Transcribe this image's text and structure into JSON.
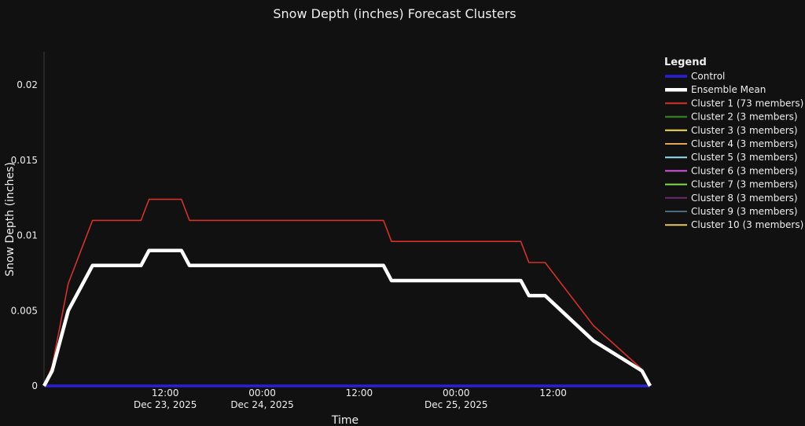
{
  "chart_data": {
    "type": "line",
    "title": "Snow Depth (inches) Forecast Clusters",
    "xlabel": "Time",
    "ylabel": "Snow Depth (inches)",
    "ylim": [
      0,
      0.0222
    ],
    "y_ticks": [
      {
        "value": 0,
        "label": "0"
      },
      {
        "value": 0.005,
        "label": "0.005"
      },
      {
        "value": 0.01,
        "label": "0.01"
      },
      {
        "value": 0.015,
        "label": "0.015"
      },
      {
        "value": 0.02,
        "label": "0.02"
      }
    ],
    "x_range": [
      "2025-12-22T21:00",
      "2025-12-26T00:00"
    ],
    "x_ticks": [
      {
        "x": "2025-12-23T12:00",
        "line1": "12:00",
        "line2": "Dec 23, 2025"
      },
      {
        "x": "2025-12-24T00:00",
        "line1": "00:00",
        "line2": "Dec 24, 2025"
      },
      {
        "x": "2025-12-24T12:00",
        "line1": "12:00",
        "line2": ""
      },
      {
        "x": "2025-12-25T00:00",
        "line1": "00:00",
        "line2": "Dec 25, 2025"
      },
      {
        "x": "2025-12-25T12:00",
        "line1": "12:00",
        "line2": ""
      }
    ],
    "grid": false,
    "legend": {
      "title": "Legend",
      "placement": "right"
    },
    "x": [
      "2025-12-22T21:00",
      "2025-12-22T22:00",
      "2025-12-23T00:00",
      "2025-12-23T03:00",
      "2025-12-23T04:00",
      "2025-12-23T09:00",
      "2025-12-23T10:00",
      "2025-12-23T14:00",
      "2025-12-23T15:00",
      "2025-12-24T15:00",
      "2025-12-24T16:00",
      "2025-12-25T08:00",
      "2025-12-25T09:00",
      "2025-12-25T11:00",
      "2025-12-25T17:00",
      "2025-12-25T23:00",
      "2025-12-26T00:00"
    ],
    "series": [
      {
        "name": "Control",
        "color": "#2a1fd8",
        "width": 3.5,
        "values": [
          0,
          0,
          0,
          0,
          0,
          0,
          0,
          0,
          0,
          0,
          0,
          0,
          0,
          0,
          0,
          0,
          0
        ]
      },
      {
        "name": "Ensemble Mean",
        "color": "#ffffff",
        "width": 4.5,
        "values": [
          0,
          0.001,
          0.005,
          0.008,
          0.008,
          0.008,
          0.009,
          0.009,
          0.008,
          0.008,
          0.007,
          0.007,
          0.006,
          0.006,
          0.003,
          0.001,
          0
        ]
      },
      {
        "name": "Cluster 1 (73 members)",
        "color": "#d6312a",
        "width": 1.6,
        "values": [
          0,
          0.0013,
          0.0068,
          0.011,
          0.011,
          0.011,
          0.0124,
          0.0124,
          0.011,
          0.011,
          0.0096,
          0.0096,
          0.0082,
          0.0082,
          0.004,
          0.0011,
          0
        ]
      },
      {
        "name": "Cluster 2 (3 members)",
        "color": "#3a8a2a",
        "width": 1.6,
        "values": [
          0,
          0,
          0,
          0,
          0,
          0,
          0,
          0,
          0,
          0,
          0,
          0,
          0,
          0,
          0,
          0,
          0
        ]
      },
      {
        "name": "Cluster 3 (3 members)",
        "color": "#f4e04d",
        "width": 1.6,
        "values": [
          0,
          0,
          0,
          0,
          0,
          0,
          0,
          0,
          0,
          0,
          0,
          0,
          0,
          0,
          0,
          0,
          0
        ]
      },
      {
        "name": "Cluster 4 (3 members)",
        "color": "#e8a250",
        "width": 1.6,
        "values": [
          0,
          0,
          0,
          0,
          0,
          0,
          0,
          0,
          0,
          0,
          0,
          0,
          0,
          0,
          0,
          0,
          0
        ]
      },
      {
        "name": "Cluster 5 (3 members)",
        "color": "#8fe0f2",
        "width": 1.6,
        "values": [
          0,
          0,
          0,
          0,
          0,
          0,
          0,
          0,
          0,
          0,
          0,
          0,
          0,
          0,
          0,
          0,
          0
        ]
      },
      {
        "name": "Cluster 6 (3 members)",
        "color": "#d855e0",
        "width": 1.6,
        "values": [
          0,
          0,
          0,
          0,
          0,
          0,
          0,
          0,
          0,
          0,
          0,
          0,
          0,
          0,
          0,
          0,
          0
        ]
      },
      {
        "name": "Cluster 7 (3 members)",
        "color": "#7fe040",
        "width": 1.6,
        "values": [
          0,
          0,
          0,
          0,
          0,
          0,
          0,
          0,
          0,
          0,
          0,
          0,
          0,
          0,
          0,
          0,
          0
        ]
      },
      {
        "name": "Cluster 8 (3 members)",
        "color": "#6a2a6e",
        "width": 1.6,
        "values": [
          0,
          0,
          0,
          0,
          0,
          0,
          0,
          0,
          0,
          0,
          0,
          0,
          0,
          0,
          0,
          0,
          0
        ]
      },
      {
        "name": "Cluster 9 (3 members)",
        "color": "#4a6a80",
        "width": 1.6,
        "values": [
          0,
          0,
          0,
          0,
          0,
          0,
          0,
          0,
          0,
          0,
          0,
          0,
          0,
          0,
          0,
          0,
          0
        ]
      },
      {
        "name": "Cluster 10 (3 members)",
        "color": "#e8c860",
        "width": 1.6,
        "values": [
          0,
          0,
          0,
          0,
          0,
          0,
          0,
          0,
          0,
          0,
          0,
          0,
          0,
          0,
          0,
          0,
          0
        ]
      }
    ]
  }
}
